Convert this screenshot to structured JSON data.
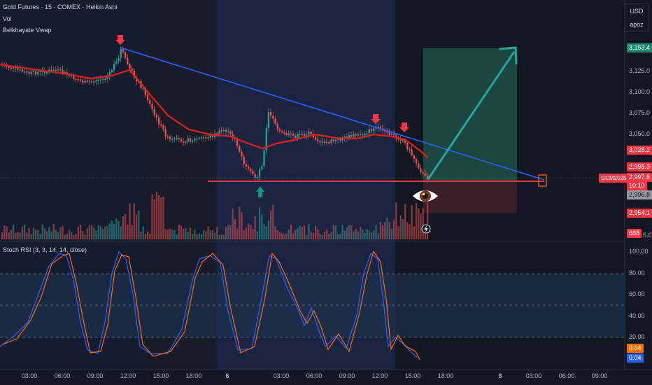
{
  "legend": {
    "symbol_line": "Gold Futures · 15 · COMEX · Heikin Ashi",
    "vol_label": "Vol",
    "vwap_label": "Belkhayate Vwap",
    "stoch_label": "Stoch RSI (3, 3, 14, 14, close)"
  },
  "unit": {
    "currency": "USD",
    "mode": "apoz"
  },
  "price_axis": {
    "ticks": [
      "3,125.0",
      "3,100.0",
      "3,075.0",
      "3,050.0"
    ],
    "partial_tick": "5.0",
    "tags": {
      "target": "3,153.4",
      "red_level": "3,028.2",
      "upper_stop": "2,998.3",
      "symbol_tag": "GCM2025",
      "last_price": "2,997.8",
      "countdown": "10:10",
      "entry": "2,996.8",
      "low_stop": "2,954.1",
      "volume": "688"
    }
  },
  "stoch_axis": {
    "ticks": [
      "100.00",
      "80.00",
      "60.00",
      "40.00",
      "20.00"
    ],
    "k_value": "0.04",
    "d_value": "0.04"
  },
  "time_axis": [
    "03:00",
    "06:00",
    "09:00",
    "12:00",
    "15:00",
    "18:00",
    "6",
    "03:00",
    "06:00",
    "09:00",
    "12:00",
    "15:00",
    "18:00",
    "8",
    "03:00",
    "06:00",
    "09:00"
  ],
  "colors": {
    "background": "#131722",
    "session_band": "#1a2340",
    "bull": "#26a69a",
    "bear": "#ef5350",
    "vwap": "#e01f1f",
    "trendline": "#2962ff",
    "support": "#f23645",
    "target_zone": "#1e4d44",
    "stop_zone": "#3c1f28",
    "stoch_k": "#2962ff",
    "stoch_d": "#ff6d00",
    "stoch_band": "#1e3350",
    "arrow_down": "#f23645",
    "arrow_up": "#089981"
  },
  "icons": {
    "eye": "eye-icon",
    "flash": "lightning-icon"
  }
}
